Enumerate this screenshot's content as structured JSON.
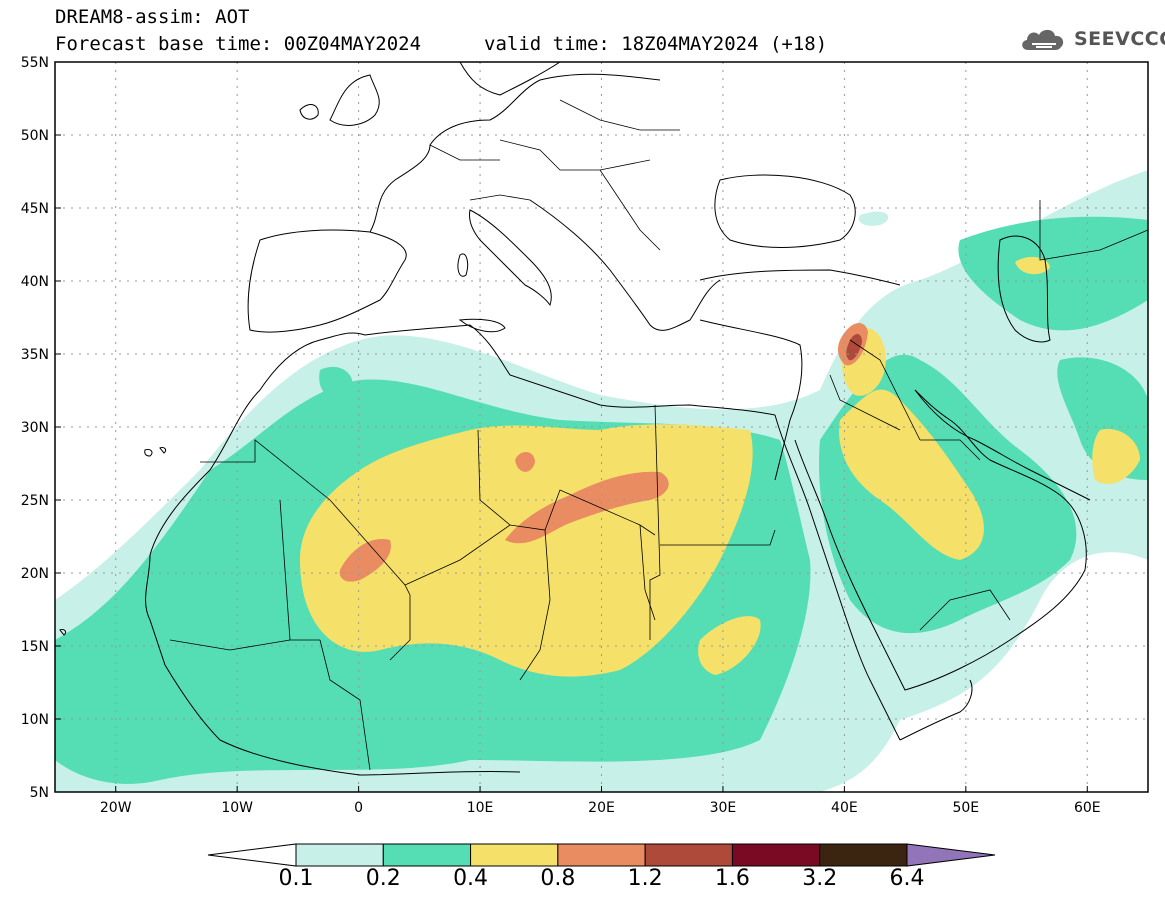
{
  "header": {
    "title_line1": "DREAM8-assim: AOT",
    "title_line2": "Forecast base time: 00Z04MAY2024",
    "valid_time": "valid time: 18Z04MAY2024 (+18)",
    "logo_text": "SEEVCCC",
    "logo_icon": "cloud-icon"
  },
  "map": {
    "lon_range": [
      -25,
      65
    ],
    "lat_range": [
      5,
      55
    ],
    "lat_labels": [
      "5N",
      "10N",
      "15N",
      "20N",
      "25N",
      "30N",
      "35N",
      "40N",
      "45N",
      "50N",
      "55N"
    ],
    "lon_labels": [
      "20W",
      "10W",
      "0",
      "10E",
      "20E",
      "30E",
      "40E",
      "50E",
      "60E"
    ],
    "lat_values": [
      5,
      10,
      15,
      20,
      25,
      30,
      35,
      40,
      45,
      50,
      55
    ],
    "lon_values": [
      -20,
      -10,
      0,
      10,
      20,
      30,
      40,
      50,
      60
    ]
  },
  "colorbar": {
    "colors": [
      "#ffffff",
      "#c6f0e8",
      "#55ddb4",
      "#f5e16a",
      "#ea8c62",
      "#ae4a3a",
      "#7a0a24",
      "#3b2510",
      "#9274b8"
    ],
    "labels": [
      "0.1",
      "0.2",
      "0.4",
      "0.8",
      "1.2",
      "1.6",
      "3.2",
      "6.4"
    ]
  },
  "colors": {
    "land_outline": "#000000",
    "grid": "#999999"
  }
}
